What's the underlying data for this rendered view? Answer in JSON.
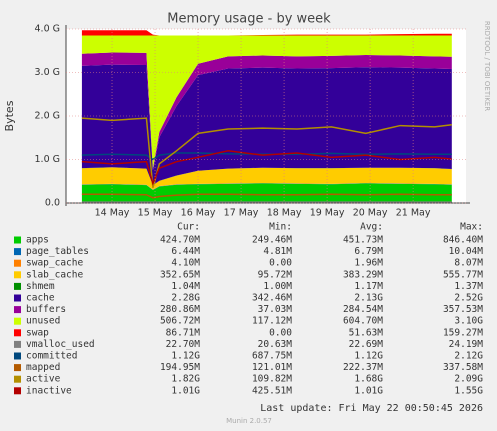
{
  "chart_data": {
    "type": "area",
    "title": "Memory usage - by week",
    "ylabel": "Bytes",
    "x": [
      13.3,
      14.0,
      14.8,
      14.95,
      15.1,
      15.5,
      16.0,
      16.7,
      17.5,
      18.3,
      19.1,
      19.9,
      20.7,
      21.5,
      21.9
    ],
    "xlim": [
      12.93,
      22.23
    ],
    "xticks": [
      {
        "value": 14,
        "label": "14 May"
      },
      {
        "value": 15,
        "label": "15 May"
      },
      {
        "value": 16,
        "label": "16 May"
      },
      {
        "value": 17,
        "label": "17 May"
      },
      {
        "value": 18,
        "label": "18 May"
      },
      {
        "value": 19,
        "label": "19 May"
      },
      {
        "value": 20,
        "label": "20 May"
      },
      {
        "value": 21,
        "label": "21 May"
      }
    ],
    "ylim": [
      0,
      4
    ],
    "yticks": [
      {
        "value": 0,
        "label": "0.0"
      },
      {
        "value": 1,
        "label": "1.0 G"
      },
      {
        "value": 2,
        "label": "2.0 G"
      },
      {
        "value": 3,
        "label": "3.0 G"
      },
      {
        "value": 4,
        "label": "4.0 G"
      }
    ],
    "grid": true,
    "series": [
      {
        "name": "apps",
        "color": "#00cc00",
        "style": "area",
        "values": [
          0.42,
          0.43,
          0.41,
          0.3,
          0.38,
          0.42,
          0.43,
          0.44,
          0.45,
          0.44,
          0.43,
          0.45,
          0.44,
          0.43,
          0.42
        ]
      },
      {
        "name": "page_tables",
        "color": "#0066b3",
        "style": "area",
        "values": [
          0.006,
          0.006,
          0.006,
          0.006,
          0.006,
          0.006,
          0.006,
          0.006,
          0.006,
          0.006,
          0.006,
          0.006,
          0.006,
          0.006,
          0.006
        ]
      },
      {
        "name": "swap_cache",
        "color": "#ff8000",
        "style": "area",
        "values": [
          0.004,
          0.004,
          0.004,
          0.004,
          0.004,
          0.004,
          0.004,
          0.004,
          0.004,
          0.004,
          0.004,
          0.004,
          0.004,
          0.004,
          0.004
        ]
      },
      {
        "name": "slab_cache",
        "color": "#ffcc00",
        "style": "area",
        "values": [
          0.37,
          0.38,
          0.37,
          0.1,
          0.12,
          0.2,
          0.3,
          0.34,
          0.35,
          0.35,
          0.36,
          0.35,
          0.36,
          0.36,
          0.35
        ]
      },
      {
        "name": "shmem",
        "color": "#008f00",
        "style": "area",
        "values": [
          0.001,
          0.001,
          0.001,
          0.001,
          0.001,
          0.001,
          0.001,
          0.001,
          0.001,
          0.001,
          0.001,
          0.001,
          0.001,
          0.001,
          0.001
        ]
      },
      {
        "name": "cache",
        "color": "#330099",
        "style": "area",
        "values": [
          2.35,
          2.36,
          2.38,
          0.34,
          1.0,
          1.6,
          2.2,
          2.3,
          2.3,
          2.29,
          2.3,
          2.31,
          2.3,
          2.29,
          2.3
        ]
      },
      {
        "name": "buffers",
        "color": "#990099",
        "style": "area",
        "values": [
          0.28,
          0.28,
          0.28,
          0.04,
          0.12,
          0.2,
          0.26,
          0.28,
          0.28,
          0.28,
          0.28,
          0.28,
          0.28,
          0.28,
          0.28
        ]
      },
      {
        "name": "unused",
        "color": "#ccff00",
        "style": "area",
        "values": [
          0.42,
          0.39,
          0.4,
          3.06,
          2.22,
          1.42,
          0.65,
          0.48,
          0.46,
          0.48,
          0.47,
          0.45,
          0.46,
          0.48,
          0.49
        ]
      },
      {
        "name": "swap",
        "color": "#ff0000",
        "style": "area",
        "values": [
          0.12,
          0.12,
          0.12,
          0.02,
          0,
          0,
          0,
          0,
          0.01,
          0.02,
          0.02,
          0.02,
          0.03,
          0.04,
          0.04
        ]
      },
      {
        "name": "vmalloc_used",
        "color": "#808080",
        "style": "line",
        "values": [
          0.02,
          0.02,
          0.02,
          0.02,
          0.02,
          0.02,
          0.02,
          0.02,
          0.02,
          0.02,
          0.02,
          0.02,
          0.02,
          0.02,
          0.02
        ]
      },
      {
        "name": "committed",
        "color": "#00487d",
        "style": "line",
        "values": [
          1.1,
          1.12,
          1.1,
          1.0,
          1.1,
          1.15,
          1.15,
          1.13,
          1.12,
          1.12,
          1.14,
          1.12,
          1.13,
          1.12,
          1.12
        ]
      },
      {
        "name": "mapped",
        "color": "#b35a00",
        "style": "line",
        "values": [
          0.2,
          0.2,
          0.19,
          0.12,
          0.15,
          0.18,
          0.2,
          0.2,
          0.19,
          0.19,
          0.2,
          0.19,
          0.2,
          0.19,
          0.19
        ]
      },
      {
        "name": "active",
        "color": "#b38f00",
        "style": "line",
        "values": [
          1.95,
          1.9,
          1.95,
          0.35,
          0.9,
          1.2,
          1.6,
          1.7,
          1.72,
          1.7,
          1.75,
          1.6,
          1.78,
          1.75,
          1.8
        ]
      },
      {
        "name": "inactive",
        "color": "#b30000",
        "style": "line",
        "values": [
          0.95,
          0.9,
          0.95,
          0.45,
          0.8,
          0.95,
          1.05,
          1.2,
          1.1,
          1.15,
          1.05,
          1.1,
          1.0,
          1.05,
          1.01
        ]
      }
    ]
  },
  "legend": {
    "headers": [
      "Cur:",
      "Min:",
      "Avg:",
      "Max:"
    ],
    "rows": [
      [
        "424.70M",
        "249.46M",
        "451.73M",
        "846.40M"
      ],
      [
        "6.44M",
        "4.81M",
        "6.79M",
        "10.04M"
      ],
      [
        "4.10M",
        "0.00",
        "1.96M",
        "8.07M"
      ],
      [
        "352.65M",
        "95.72M",
        "383.29M",
        "555.77M"
      ],
      [
        "1.04M",
        "1.00M",
        "1.17M",
        "1.37M"
      ],
      [
        "2.28G",
        "342.46M",
        "2.13G",
        "2.52G"
      ],
      [
        "280.86M",
        "37.03M",
        "284.54M",
        "357.53M"
      ],
      [
        "506.72M",
        "117.12M",
        "604.70M",
        "3.10G"
      ],
      [
        "86.71M",
        "0.00",
        "51.63M",
        "159.27M"
      ],
      [
        "22.70M",
        "20.63M",
        "22.69M",
        "24.19M"
      ],
      [
        "1.12G",
        "687.75M",
        "1.12G",
        "2.12G"
      ],
      [
        "194.95M",
        "121.01M",
        "222.37M",
        "337.58M"
      ],
      [
        "1.82G",
        "109.82M",
        "1.68G",
        "2.09G"
      ],
      [
        "1.01G",
        "425.51M",
        "1.01G",
        "1.55G"
      ]
    ]
  },
  "last_update": "Last update: Fri May 22 00:50:45 2026",
  "version": "Munin 2.0.57",
  "watermark": "RRDTOOL / TOBI OETIKER"
}
